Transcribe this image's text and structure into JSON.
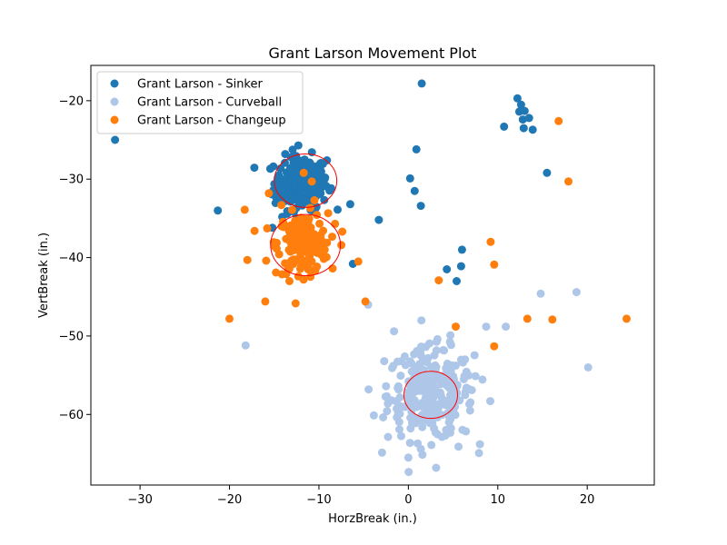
{
  "chart_data": {
    "type": "scatter",
    "title": "Grant Larson Movement Plot",
    "xlabel": "HorzBreak (in.)",
    "ylabel": "VertBreak (in.)",
    "xlim": [
      -35.5,
      27.5
    ],
    "ylim": [
      -69,
      -15.5
    ],
    "xticks": [
      -30,
      -20,
      -10,
      0,
      10,
      20
    ],
    "yticks": [
      -20,
      -30,
      -40,
      -50,
      -60
    ],
    "xtick_labels": [
      "−30",
      "−20",
      "−10",
      "0",
      "10",
      "20"
    ],
    "ytick_labels": [
      "−20",
      "−30",
      "−40",
      "−50",
      "−60"
    ],
    "grid": false,
    "legend_position": "top-left",
    "series": [
      {
        "name": "Grant Larson - Sinker",
        "color": "#1f77b4",
        "cluster": {
          "center": [
            -12,
            -30.5
          ],
          "spread": [
            1.5,
            1.7
          ],
          "count": 200
        },
        "points": [
          [
            -32.8,
            -25
          ],
          [
            1.5,
            -17.8
          ],
          [
            0.9,
            -26.2
          ],
          [
            0.2,
            -29.9
          ],
          [
            0.7,
            -31.5
          ],
          [
            1.4,
            -33.4
          ],
          [
            -21.3,
            -34
          ],
          [
            -6.5,
            -33.2
          ],
          [
            -3.3,
            -35.2
          ],
          [
            -6.2,
            -40.8
          ],
          [
            4.3,
            -41.5
          ],
          [
            5.9,
            -41.1
          ],
          [
            6,
            -39
          ],
          [
            5.4,
            -43
          ],
          [
            12.2,
            -19.7
          ],
          [
            12.6,
            -20.5
          ],
          [
            12.4,
            -21.4
          ],
          [
            13,
            -21.3
          ],
          [
            12.8,
            -22.4
          ],
          [
            13.5,
            -22.2
          ],
          [
            13.9,
            -23.7
          ],
          [
            12.9,
            -23.5
          ],
          [
            10.7,
            -23.3
          ],
          [
            15.5,
            -29.2
          ],
          [
            -14.5,
            -29.8
          ],
          [
            -12.3,
            -25.7
          ],
          [
            -11.6,
            -27.5
          ],
          [
            -9.1,
            -27.6
          ],
          [
            -8.8,
            -31.4
          ],
          [
            -14.8,
            -32.3
          ],
          [
            -15.2,
            -36.2
          ],
          [
            -14.1,
            -34.8
          ],
          [
            -12.8,
            -34.2
          ],
          [
            -10.4,
            -33.8
          ],
          [
            -9.8,
            -31.2
          ],
          [
            -13.2,
            -28.6
          ],
          [
            -11.2,
            -28.4
          ],
          [
            -14.5,
            -31.1
          ],
          [
            -13.1,
            -32.8
          ],
          [
            -10.5,
            -32.5
          ],
          [
            -9.3,
            -29.8
          ],
          [
            -12.1,
            -33.3
          ]
        ]
      },
      {
        "name": "Grant Larson - Curveball",
        "color": "#aec7e8",
        "cluster": {
          "center": [
            2.5,
            -57.5
          ],
          "spread": [
            2.4,
            2.9
          ],
          "count": 260
        },
        "points": [
          [
            -18.2,
            -51.2
          ],
          [
            -4.5,
            -46
          ],
          [
            -1.6,
            -49.4
          ],
          [
            4.7,
            -49.9
          ],
          [
            8.7,
            -48.8
          ],
          [
            10.9,
            -48.8
          ],
          [
            14.8,
            -44.6
          ],
          [
            18.8,
            -44.4
          ],
          [
            20.1,
            -54
          ],
          [
            8,
            -63.8
          ],
          [
            3.1,
            -66.8
          ],
          [
            0,
            -65.5
          ],
          [
            -2.7,
            -53.2
          ],
          [
            -2.5,
            -56.4
          ],
          [
            -1.9,
            -58.2
          ],
          [
            6.9,
            -59.5
          ],
          [
            6.2,
            -55.5
          ],
          [
            -0.4,
            -52.6
          ],
          [
            3.9,
            -51.8
          ],
          [
            5.6,
            -64.1
          ],
          [
            -1,
            -61.9
          ],
          [
            1.4,
            -64.4
          ],
          [
            7.1,
            -56.9
          ],
          [
            -1.2,
            -56.6
          ]
        ]
      },
      {
        "name": "Grant Larson - Changeup",
        "color": "#ff7f0e",
        "cluster": {
          "center": [
            -11.8,
            -38.2
          ],
          "spread": [
            1.4,
            1.9
          ],
          "count": 170
        },
        "points": [
          [
            -18.3,
            -33.9
          ],
          [
            -17.2,
            -36.6
          ],
          [
            -18,
            -40.3
          ],
          [
            -15.9,
            -40.4
          ],
          [
            -16,
            -45.6
          ],
          [
            -20,
            -47.8
          ],
          [
            -7.5,
            -38.4
          ],
          [
            -8.2,
            -35.7
          ],
          [
            -5.6,
            -40.5
          ],
          [
            -4.8,
            -45.6
          ],
          [
            3.4,
            -42.9
          ],
          [
            5.3,
            -48.8
          ],
          [
            9.2,
            -38
          ],
          [
            9.6,
            -40.9
          ],
          [
            9.6,
            -51.3
          ],
          [
            13.3,
            -47.8
          ],
          [
            16.1,
            -47.9
          ],
          [
            16.8,
            -22.6
          ],
          [
            17.9,
            -30.3
          ],
          [
            24.4,
            -47.8
          ],
          [
            -11.7,
            -29.2
          ],
          [
            -10.8,
            -30.3
          ],
          [
            -15.6,
            -31.8
          ],
          [
            -14.2,
            -33.3
          ],
          [
            -10.5,
            -32.7
          ],
          [
            -12.3,
            -42.4
          ],
          [
            -13.3,
            -43
          ],
          [
            -14.8,
            -41.9
          ],
          [
            -9.1,
            -38.1
          ],
          [
            -13.8,
            -35.9
          ]
        ]
      }
    ],
    "ellipses": [
      {
        "center": [
          -11.5,
          -30.2
        ],
        "radii": [
          3.5,
          3.4
        ],
        "color": "#ff0000"
      },
      {
        "center": [
          -11.5,
          -38.4
        ],
        "radii": [
          3.9,
          3.9
        ],
        "color": "#ff0000"
      },
      {
        "center": [
          2.5,
          -57.5
        ],
        "radii": [
          3.0,
          3.0
        ],
        "color": "#ff0000"
      }
    ]
  }
}
